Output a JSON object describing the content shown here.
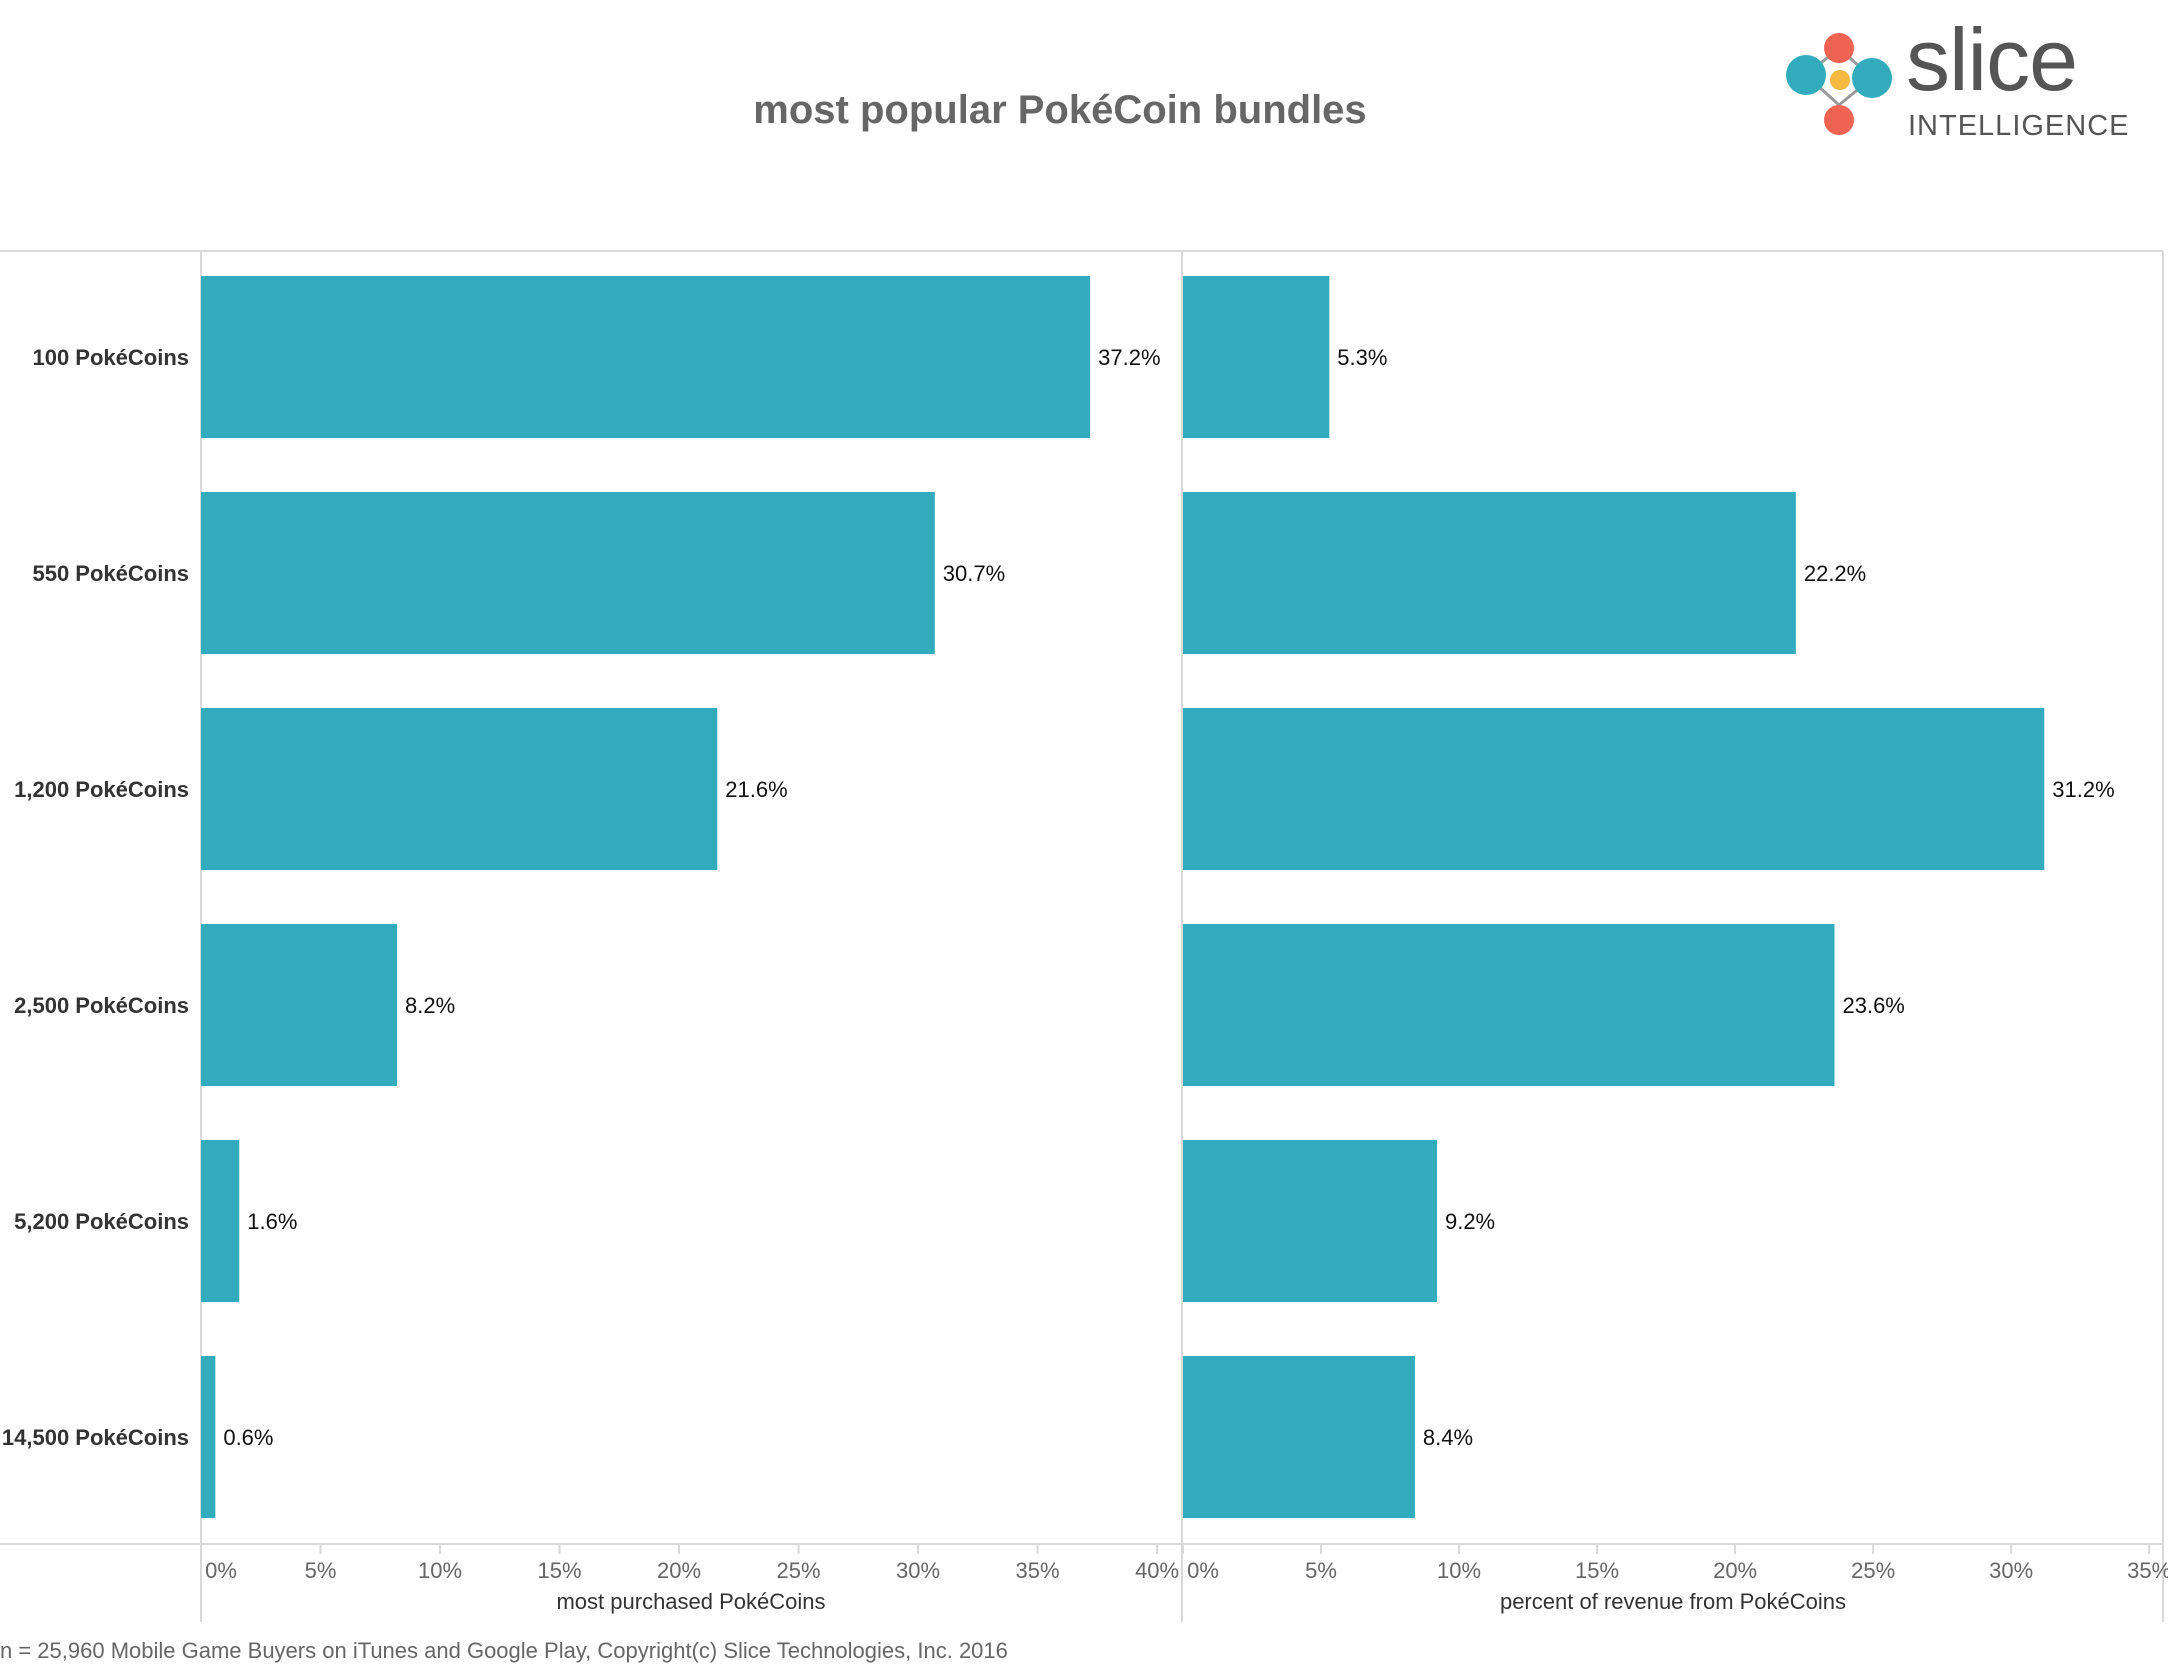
{
  "title": "most popular PokéCoin bundles",
  "footer": "n = 25,960 Mobile Game Buyers on iTunes and Google Play, Copyright(c) Slice Technologies, Inc. 2016",
  "logo": {
    "word": "slice",
    "sub": "INTELLIGENCE"
  },
  "colors": {
    "bar": "#32ACBC",
    "axis": "#d9d9d9",
    "label": "#333333",
    "text": "#666666",
    "logo_red": "#EE6352",
    "logo_teal": "#32ACBC",
    "logo_yellow": "#F5B841"
  },
  "chart_data": [
    {
      "type": "bar",
      "orientation": "horizontal",
      "categories": [
        "100 PokéCoins",
        "550 PokéCoins",
        "1,200 PokéCoins",
        "2,500 PokéCoins",
        "5,200 PokéCoins",
        "14,500 PokéCoins"
      ],
      "values": [
        37.2,
        30.7,
        21.6,
        8.2,
        1.6,
        0.6
      ],
      "data_labels": [
        "37.2%",
        "30.7%",
        "21.6%",
        "8.2%",
        "1.6%",
        "0.6%"
      ],
      "xlabel": "most purchased PokéCoins",
      "xlim": [
        0,
        41
      ],
      "xticks": [
        0,
        5,
        10,
        15,
        20,
        25,
        30,
        35,
        40
      ],
      "xtick_labels": [
        "0%",
        "5%",
        "10%",
        "15%",
        "20%",
        "25%",
        "30%",
        "35%",
        "40%"
      ]
    },
    {
      "type": "bar",
      "orientation": "horizontal",
      "categories": [
        "100 PokéCoins",
        "550 PokéCoins",
        "1,200 PokéCoins",
        "2,500 PokéCoins",
        "5,200 PokéCoins",
        "14,500 PokéCoins"
      ],
      "values": [
        5.3,
        22.2,
        31.2,
        23.6,
        9.2,
        8.4
      ],
      "data_labels": [
        "5.3%",
        "22.2%",
        "31.2%",
        "23.6%",
        "9.2%",
        "8.4%"
      ],
      "xlabel": "percent of revenue from PokéCoins",
      "xlim": [
        0,
        35.5
      ],
      "xticks": [
        0,
        5,
        10,
        15,
        20,
        25,
        30,
        35
      ],
      "xtick_labels": [
        "0%",
        "5%",
        "10%",
        "15%",
        "20%",
        "25%",
        "30%",
        "35%"
      ]
    }
  ]
}
